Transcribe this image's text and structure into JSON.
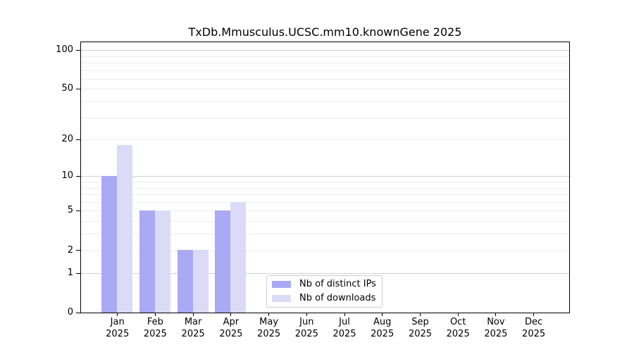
{
  "title": "TxDb.Mmusculus.UCSC.mm10.knownGene 2025",
  "chart_data": {
    "type": "bar",
    "title": "TxDb.Mmusculus.UCSC.mm10.knownGene 2025",
    "months": [
      "Jan",
      "Feb",
      "Mar",
      "Apr",
      "May",
      "Jun",
      "Jul",
      "Aug",
      "Sep",
      "Oct",
      "Nov",
      "Dec"
    ],
    "year": "2025",
    "series": [
      {
        "name": "Nb of distinct IPs",
        "color": "#a9a9f4",
        "values": [
          10,
          5,
          2,
          5,
          0,
          0,
          0,
          0,
          0,
          0,
          0,
          0
        ]
      },
      {
        "name": "Nb of downloads",
        "color": "#dbdbf8",
        "values": [
          18,
          5,
          2,
          6,
          0,
          0,
          0,
          0,
          0,
          0,
          0,
          0
        ]
      }
    ],
    "xlabel": "",
    "ylabel": "",
    "y_scale": "log1p",
    "ylim": [
      0,
      117
    ],
    "y_ticks": [
      0,
      1,
      2,
      5,
      10,
      20,
      50,
      100
    ],
    "y_gridlines_major": [
      1,
      10,
      100
    ],
    "y_gridlines_minor": [
      2,
      3,
      4,
      5,
      6,
      7,
      8,
      9,
      20,
      30,
      40,
      50,
      60,
      70,
      80,
      90
    ],
    "grid": "horizontal",
    "legend_position": "lower center inside"
  }
}
